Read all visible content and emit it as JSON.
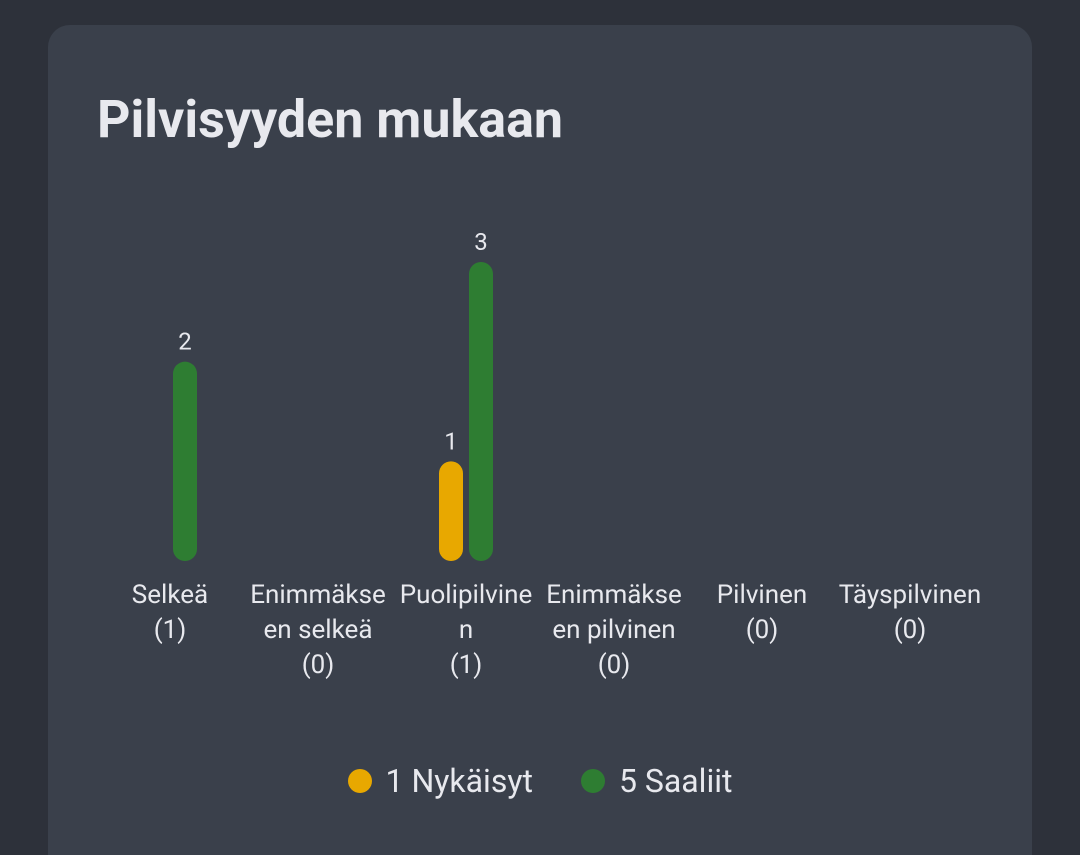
{
  "chart_data": {
    "type": "bar",
    "title": "Pilvisyyden mukaan",
    "categories": [
      "Selkeä",
      "Enimmäkseen selkeä",
      "Puolipilvinen",
      "Enimmäkseen pilvinen",
      "Pilvinen",
      "Täyspilvinen"
    ],
    "category_counts": [
      "(1)",
      "(0)",
      "(1)",
      "(0)",
      "(0)",
      "(0)"
    ],
    "series": [
      {
        "name": "1 Nykäisyt",
        "color": "#e8a800",
        "values": [
          0,
          0,
          1,
          0,
          0,
          0
        ]
      },
      {
        "name": "5 Saaliit",
        "color": "#2e7d32",
        "values": [
          2,
          0,
          3,
          0,
          0,
          0
        ]
      }
    ]
  }
}
